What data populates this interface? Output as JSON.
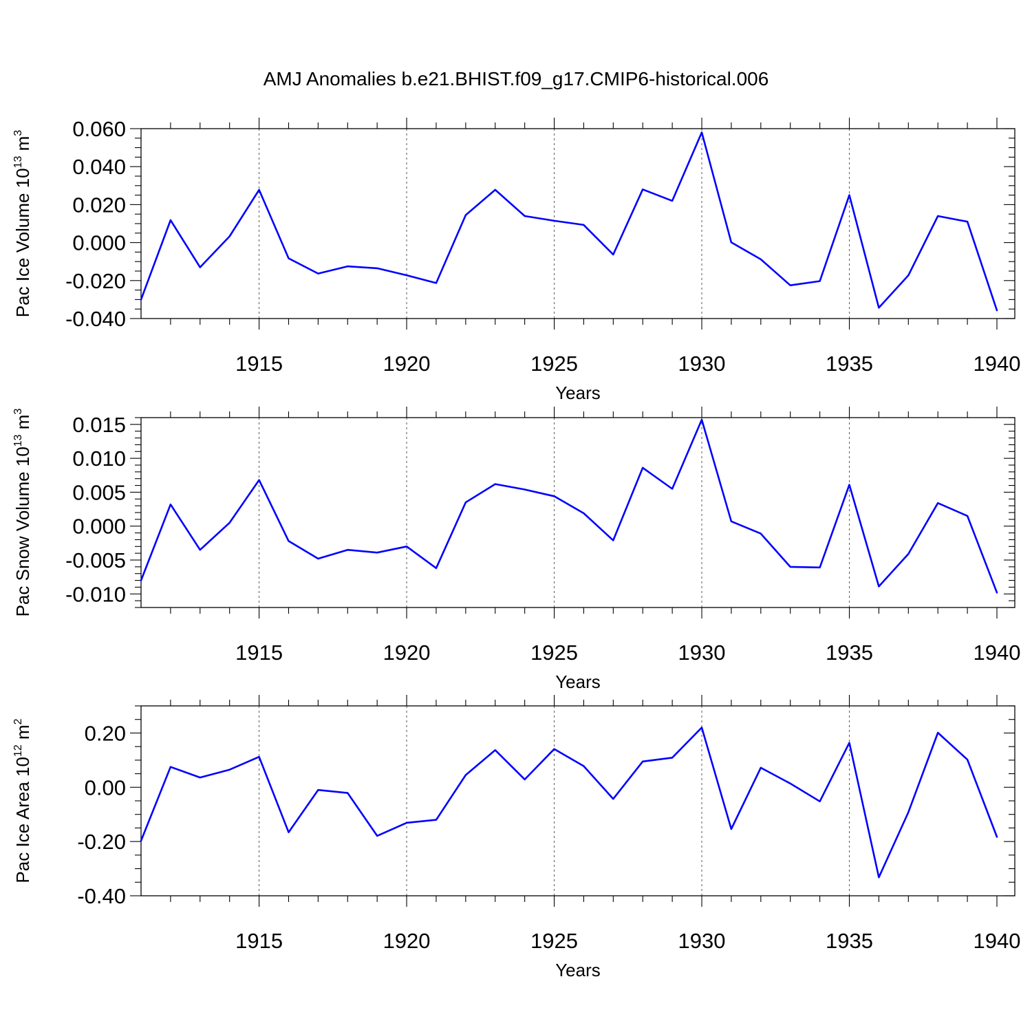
{
  "figure_title": "AMJ Anomalies b.e21.BHIST.f09_g17.CMIP6-historical.006",
  "colors": {
    "series": "#0000ff",
    "axes": "#000000",
    "grid": "#555555"
  },
  "chart_data": [
    {
      "type": "line",
      "name": "ice-volume",
      "ylabel": {
        "main": "Pac Ice Volume 10",
        "exp": "13",
        "unit": " m",
        "unit_exp": "3"
      },
      "xlabel": "Years",
      "xlim": [
        1911,
        1940
      ],
      "ylim": [
        -0.04,
        0.06
      ],
      "xticks": [
        1915,
        1920,
        1925,
        1930,
        1935,
        1940
      ],
      "xtick_labels": [
        "1915",
        "1920",
        "1925",
        "1930",
        "1935",
        "1940"
      ],
      "yticks": [
        -0.04,
        -0.02,
        0.0,
        0.02,
        0.04,
        0.06
      ],
      "ytick_labels": [
        "-0.040",
        "-0.020",
        "0.000",
        "0.020",
        "0.040",
        "0.060"
      ],
      "y_minor_step": 0.005,
      "grid": "vertical-dashed",
      "x": [
        1911,
        1912,
        1913,
        1914,
        1915,
        1916,
        1917,
        1918,
        1919,
        1920,
        1921,
        1922,
        1923,
        1924,
        1925,
        1926,
        1927,
        1928,
        1929,
        1930,
        1931,
        1932,
        1933,
        1934,
        1935,
        1936,
        1937,
        1938,
        1939,
        1940
      ],
      "values": [
        -0.03,
        0.0118,
        -0.013,
        0.0033,
        0.0278,
        -0.0083,
        -0.0163,
        -0.0125,
        -0.0135,
        -0.0172,
        -0.0213,
        0.0145,
        0.0278,
        0.014,
        0.0115,
        0.0093,
        -0.0063,
        0.028,
        0.022,
        0.058,
        0.0001,
        -0.0088,
        -0.0225,
        -0.0203,
        0.025,
        -0.0343,
        -0.0173,
        0.014,
        0.011,
        -0.0357
      ]
    },
    {
      "type": "line",
      "name": "snow-volume",
      "ylabel": {
        "main": "Pac Snow Volume 10",
        "exp": "13",
        "unit": " m",
        "unit_exp": "3"
      },
      "xlabel": "Years",
      "xlim": [
        1911,
        1940
      ],
      "ylim": [
        -0.012,
        0.016
      ],
      "xticks": [
        1915,
        1920,
        1925,
        1930,
        1935,
        1940
      ],
      "xtick_labels": [
        "1915",
        "1920",
        "1925",
        "1930",
        "1935",
        "1940"
      ],
      "yticks": [
        -0.01,
        -0.005,
        0.0,
        0.005,
        0.01,
        0.015
      ],
      "ytick_labels": [
        "-0.010",
        "-0.005",
        "0.000",
        "0.005",
        "0.010",
        "0.015"
      ],
      "y_minor_step": 0.001,
      "grid": "vertical-dashed",
      "x": [
        1911,
        1912,
        1913,
        1914,
        1915,
        1916,
        1917,
        1918,
        1919,
        1920,
        1921,
        1922,
        1923,
        1924,
        1925,
        1926,
        1927,
        1928,
        1929,
        1930,
        1931,
        1932,
        1933,
        1934,
        1935,
        1936,
        1937,
        1938,
        1939,
        1940
      ],
      "values": [
        -0.008,
        0.0032,
        -0.0035,
        0.0005,
        0.0068,
        -0.0022,
        -0.0048,
        -0.0035,
        -0.0039,
        -0.003,
        -0.0062,
        0.0035,
        0.0062,
        0.0054,
        0.0044,
        0.0019,
        -0.0021,
        0.0086,
        0.0055,
        0.0157,
        0.0007,
        -0.0011,
        -0.006,
        -0.0061,
        0.0061,
        -0.0089,
        -0.0041,
        0.0034,
        0.0015,
        -0.0098
      ]
    },
    {
      "type": "line",
      "name": "ice-area",
      "ylabel": {
        "main": "Pac Ice Area 10",
        "exp": "12",
        "unit": " m",
        "unit_exp": "2"
      },
      "xlabel": "Years",
      "xlim": [
        1911,
        1940
      ],
      "ylim": [
        -0.4,
        0.3
      ],
      "xticks": [
        1915,
        1920,
        1925,
        1930,
        1935,
        1940
      ],
      "xtick_labels": [
        "1915",
        "1920",
        "1925",
        "1930",
        "1935",
        "1940"
      ],
      "yticks": [
        -0.4,
        -0.2,
        0.0,
        0.2
      ],
      "ytick_labels": [
        "-0.40",
        "-0.20",
        "0.00",
        "0.20"
      ],
      "y_minor_step": 0.05,
      "grid": "vertical-dashed",
      "x": [
        1911,
        1912,
        1913,
        1914,
        1915,
        1916,
        1917,
        1918,
        1919,
        1920,
        1921,
        1922,
        1923,
        1924,
        1925,
        1926,
        1927,
        1928,
        1929,
        1930,
        1931,
        1932,
        1933,
        1934,
        1935,
        1936,
        1937,
        1938,
        1939,
        1940
      ],
      "values": [
        -0.197,
        0.075,
        0.036,
        0.065,
        0.112,
        -0.166,
        -0.01,
        -0.021,
        -0.179,
        -0.131,
        -0.12,
        0.045,
        0.137,
        0.029,
        0.141,
        0.078,
        -0.043,
        0.095,
        0.109,
        0.22,
        -0.154,
        0.072,
        0.014,
        -0.052,
        0.164,
        -0.332,
        -0.092,
        0.201,
        0.102,
        -0.183
      ]
    }
  ]
}
